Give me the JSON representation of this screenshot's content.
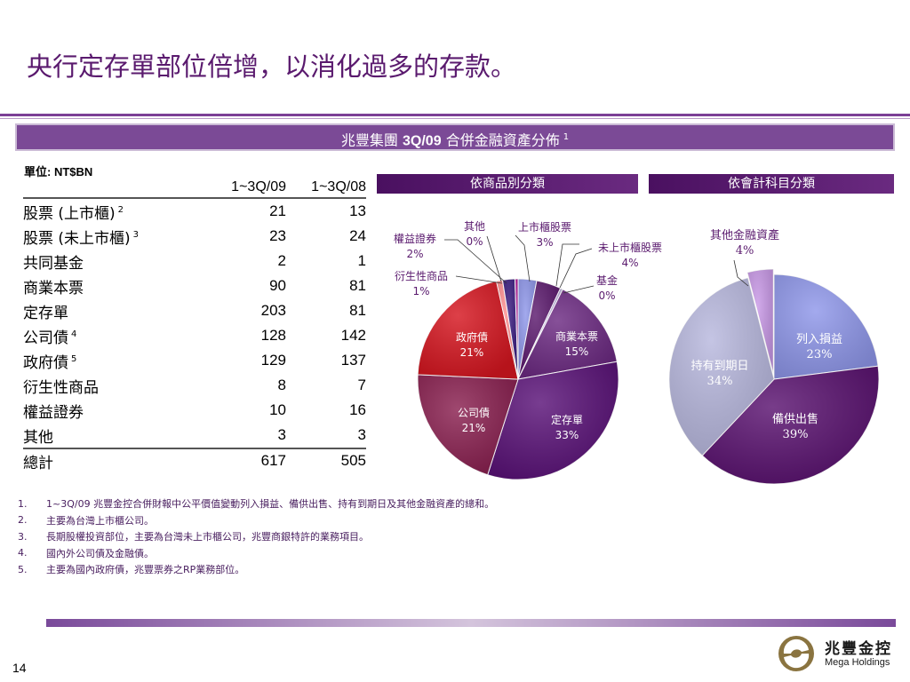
{
  "page": {
    "title": "央行定存單部位倍增，以消化過多的存款。",
    "page_number": "14"
  },
  "banner": {
    "prefix": "兆豐集團 ",
    "bold": "3Q/09",
    "suffix": " 合併金融資產分佈",
    "footnote_ref": "1"
  },
  "table": {
    "unit": "單位: NT$BN",
    "col1": "1~3Q/09",
    "col2": "1~3Q/08",
    "rows": [
      {
        "label": "股票 (上市櫃)",
        "ref": "2",
        "v1": "21",
        "v2": "13"
      },
      {
        "label": "股票 (未上市櫃)",
        "ref": "3",
        "v1": "23",
        "v2": "24"
      },
      {
        "label": "共同基金",
        "ref": "",
        "v1": "2",
        "v2": "1"
      },
      {
        "label": "商業本票",
        "ref": "",
        "v1": "90",
        "v2": "81"
      },
      {
        "label": "定存單",
        "ref": "",
        "v1": "203",
        "v2": "81"
      },
      {
        "label": "公司債",
        "ref": "4",
        "v1": "128",
        "v2": "142"
      },
      {
        "label": "政府債",
        "ref": "5",
        "v1": "129",
        "v2": "137"
      },
      {
        "label": "衍生性商品",
        "ref": "",
        "v1": "8",
        "v2": "7"
      },
      {
        "label": "權益證券",
        "ref": "",
        "v1": "10",
        "v2": "16"
      },
      {
        "label": "其他",
        "ref": "",
        "v1": "3",
        "v2": "3"
      }
    ],
    "total": {
      "label": "總計",
      "v1": "617",
      "v2": "505"
    }
  },
  "chart_data": [
    {
      "type": "pie",
      "title": "依商品別分類",
      "slices": [
        {
          "label": "上市櫃股票",
          "pct_label": "3%",
          "value": 3,
          "color": "#8f97ea"
        },
        {
          "label": "未上市櫃股票",
          "pct_label": "4%",
          "value": 4,
          "color": "#5c1a6e"
        },
        {
          "label": "基金",
          "pct_label": "0%",
          "value": 0.4,
          "color": "#c4b8e6"
        },
        {
          "label": "商業本票",
          "pct_label": "15%",
          "value": 15,
          "color": "#6c2a82"
        },
        {
          "label": "定存單",
          "pct_label": "33%",
          "value": 33,
          "color": "#5a1278"
        },
        {
          "label": "公司債",
          "pct_label": "21%",
          "value": 21,
          "color": "#8a2050"
        },
        {
          "label": "政府債",
          "pct_label": "21%",
          "value": 21,
          "color": "#d61620"
        },
        {
          "label": "衍生性商品",
          "pct_label": "1%",
          "value": 1,
          "color": "#ff9090"
        },
        {
          "label": "權益證券",
          "pct_label": "2%",
          "value": 2,
          "color": "#3a1c80"
        },
        {
          "label": "其他",
          "pct_label": "0%",
          "value": 0.5,
          "color": "#b01898"
        }
      ]
    },
    {
      "type": "pie",
      "title": "依會計科目分類",
      "slices": [
        {
          "label": "列入損益",
          "pct_label": "23%",
          "value": 23,
          "color": "#8f97ea"
        },
        {
          "label": "備供出售",
          "pct_label": "39%",
          "value": 39,
          "color": "#5a1270"
        },
        {
          "label": "持有到期日",
          "pct_label": "34%",
          "value": 34,
          "color": "#b8b8de"
        },
        {
          "label": "其他金融資產",
          "pct_label": "4%",
          "value": 4,
          "color": "#c898e6"
        }
      ]
    }
  ],
  "footnotes": [
    {
      "num": "1.",
      "text": "1~3Q/09 兆豐金控合併財報中公平價值變動列入損益、備供出售、持有到期日及其他金融資產的總和。"
    },
    {
      "num": "2.",
      "text": "主要為台灣上市櫃公司。"
    },
    {
      "num": "3.",
      "text": "長期股權投資部位，主要為台灣未上市櫃公司，兆豐商銀特許的業務項目。"
    },
    {
      "num": "4.",
      "text": "國內外公司債及金融債。"
    },
    {
      "num": "5.",
      "text": "主要為國內政府債，兆豐票券之RP業務部位。"
    }
  ],
  "logo": {
    "name_cn": "兆豐金控",
    "name_en": "Mega Holdings"
  }
}
